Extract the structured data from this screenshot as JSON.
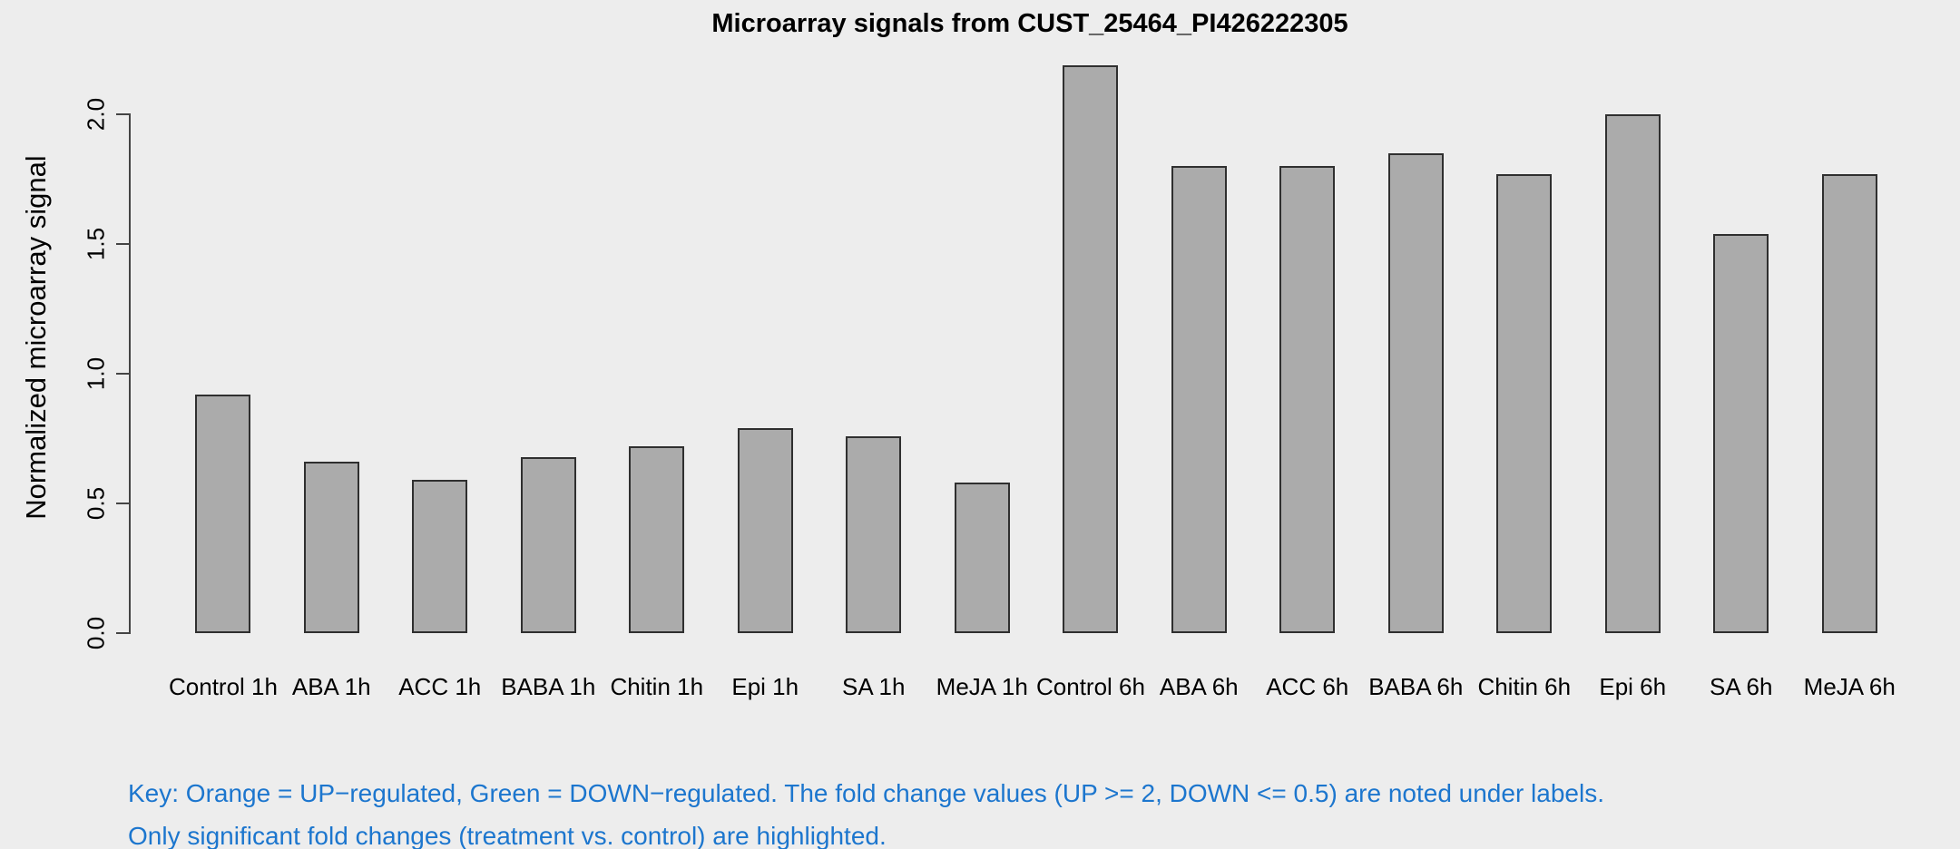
{
  "title": "Microarray signals from CUST_25464_PI426222305",
  "y_axis": {
    "label": "Normalized microarray signal",
    "tick_labels": [
      "0.0",
      "0.5",
      "1.0",
      "1.5",
      "2.0"
    ]
  },
  "footer": {
    "line1": "Key: Orange = UP−regulated, Green = DOWN−regulated. The fold change values (UP >= 2, DOWN <= 0.5) are noted under labels.",
    "line2": "Only significant fold changes (treatment vs. control) are highlighted."
  },
  "colors": {
    "background": "#EDEDED",
    "bar_fill": "#ABABAB",
    "bar_border": "#2F2F2F",
    "axis": "#444444",
    "text": "#000000",
    "footer_text": "#1C76CE"
  },
  "chart_data": {
    "type": "bar",
    "title": "Microarray signals from CUST_25464_PI426222305",
    "xlabel": "",
    "ylabel": "Normalized microarray signal",
    "ylim": [
      0,
      2.2
    ],
    "yticks": [
      0.0,
      0.5,
      1.0,
      1.5,
      2.0
    ],
    "grid": false,
    "legend": "none",
    "categories": [
      "Control 1h",
      "ABA 1h",
      "ACC 1h",
      "BABA 1h",
      "Chitin 1h",
      "Epi 1h",
      "SA 1h",
      "MeJA 1h",
      "Control 6h",
      "ABA 6h",
      "ACC 6h",
      "BABA 6h",
      "Chitin 6h",
      "Epi 6h",
      "SA 6h",
      "MeJA 6h"
    ],
    "values": [
      0.92,
      0.66,
      0.59,
      0.68,
      0.72,
      0.79,
      0.76,
      0.58,
      2.19,
      1.8,
      1.8,
      1.85,
      1.77,
      2.0,
      1.54,
      1.77
    ]
  }
}
